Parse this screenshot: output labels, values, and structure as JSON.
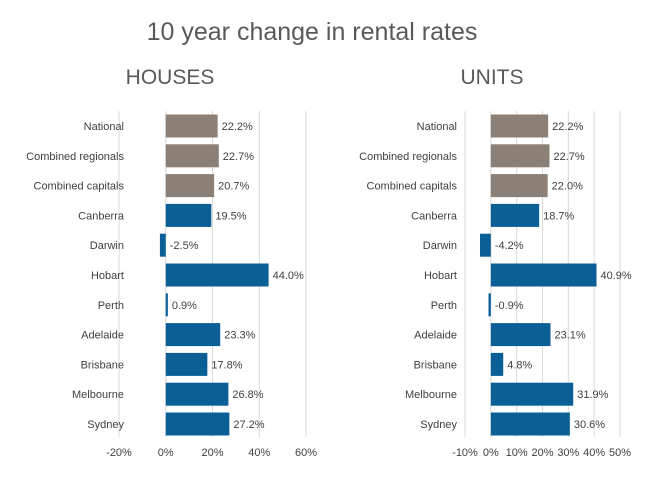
{
  "title": "10 year change in rental rates",
  "colors": {
    "aggregate": "#8c7f75",
    "city": "#0a5f96",
    "grid": "#d9d9d9"
  },
  "chart_data": [
    {
      "type": "bar",
      "orientation": "horizontal",
      "title": "HOUSES",
      "categories": [
        "National",
        "Combined regionals",
        "Combined capitals",
        "Canberra",
        "Darwin",
        "Hobart",
        "Perth",
        "Adelaide",
        "Brisbane",
        "Melbourne",
        "Sydney"
      ],
      "values": [
        22.2,
        22.7,
        20.7,
        19.5,
        -2.5,
        44.0,
        0.9,
        23.3,
        17.8,
        26.8,
        27.2
      ],
      "value_labels": [
        "22.2%",
        "22.7%",
        "20.7%",
        "19.5%",
        "-2.5%",
        "44.0%",
        "0.9%",
        "23.3%",
        "17.8%",
        "26.8%",
        "27.2%"
      ],
      "bar_colors": [
        "aggregate",
        "aggregate",
        "aggregate",
        "city",
        "city",
        "city",
        "city",
        "city",
        "city",
        "city",
        "city"
      ],
      "xlim": [
        -20,
        60
      ],
      "ticks": [
        -20,
        0,
        20,
        40,
        60
      ],
      "tick_labels": [
        "-20%",
        "0%",
        "20%",
        "40%",
        "60%"
      ],
      "grid": true
    },
    {
      "type": "bar",
      "orientation": "horizontal",
      "title": "UNITS",
      "categories": [
        "National",
        "Combined regionals",
        "Combined capitals",
        "Canberra",
        "Darwin",
        "Hobart",
        "Perth",
        "Adelaide",
        "Brisbane",
        "Melbourne",
        "Sydney"
      ],
      "values": [
        22.2,
        22.7,
        22.0,
        18.7,
        -4.2,
        40.9,
        -0.9,
        23.1,
        4.8,
        31.9,
        30.6
      ],
      "value_labels": [
        "22.2%",
        "22.7%",
        "22.0%",
        "18.7%",
        "-4.2%",
        "40.9%",
        "-0.9%",
        "23.1%",
        "4.8%",
        "31.9%",
        "30.6%"
      ],
      "bar_colors": [
        "aggregate",
        "aggregate",
        "aggregate",
        "city",
        "city",
        "city",
        "city",
        "city",
        "city",
        "city",
        "city"
      ],
      "xlim": [
        -10,
        50
      ],
      "ticks": [
        -10,
        0,
        10,
        20,
        30,
        40,
        50
      ],
      "tick_labels": [
        "-10%",
        "0%",
        "10%",
        "20%",
        "30%",
        "40%",
        "50%"
      ],
      "grid": true
    }
  ]
}
